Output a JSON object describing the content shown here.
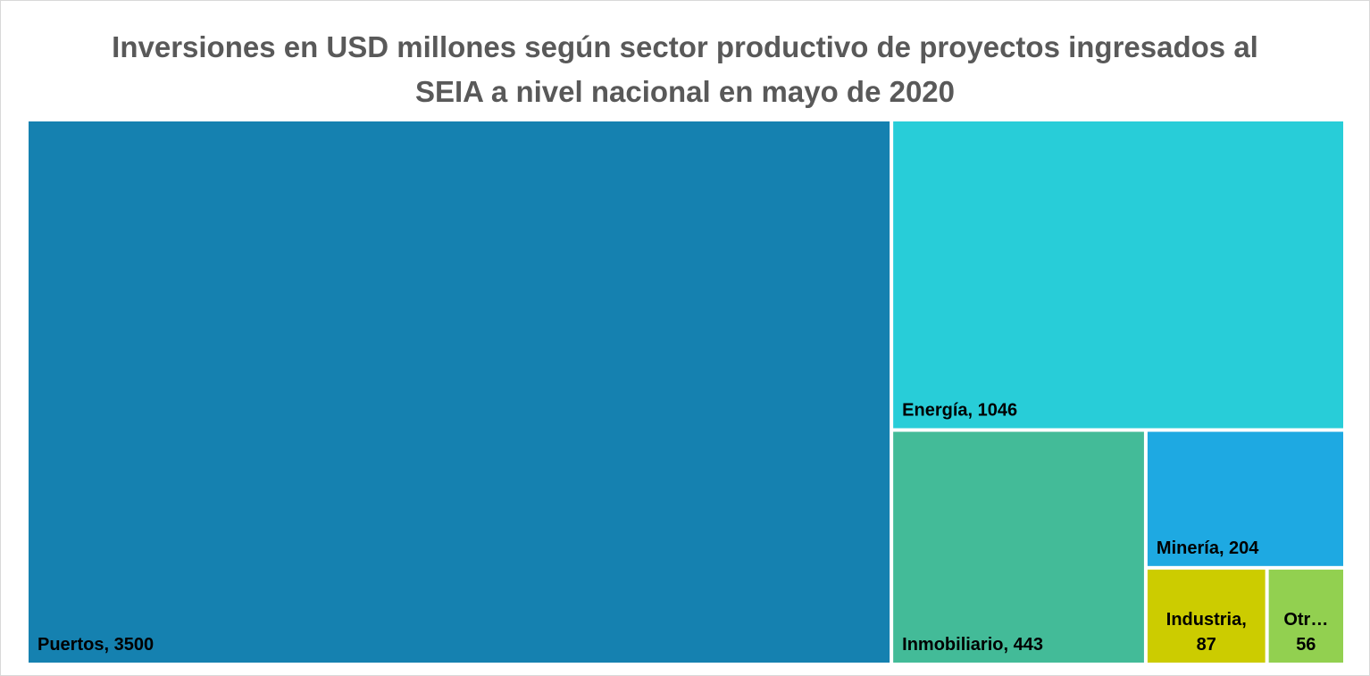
{
  "chart_data": {
    "type": "treemap",
    "title": "Inversiones en USD millones según sector productivo de proyectos ingresados al SEIA a nivel nacional en mayo de 2020",
    "categories": [
      "Puertos",
      "Energía",
      "Inmobiliario",
      "Minería",
      "Industria",
      "Otr…"
    ],
    "values": [
      3500,
      1046,
      443,
      204,
      87,
      56
    ],
    "data_labels": [
      [
        "Puertos, 3500"
      ],
      [
        "Energía, 1046"
      ],
      [
        "Inmobiliario, 443"
      ],
      [
        "Minería, 204"
      ],
      [
        "Industria,",
        "87"
      ],
      [
        "Otr…",
        "56"
      ]
    ],
    "colors": [
      "#1581b0",
      "#28cdd8",
      "#43bb98",
      "#1ea9e2",
      "#cccc00",
      "#92d050"
    ]
  }
}
